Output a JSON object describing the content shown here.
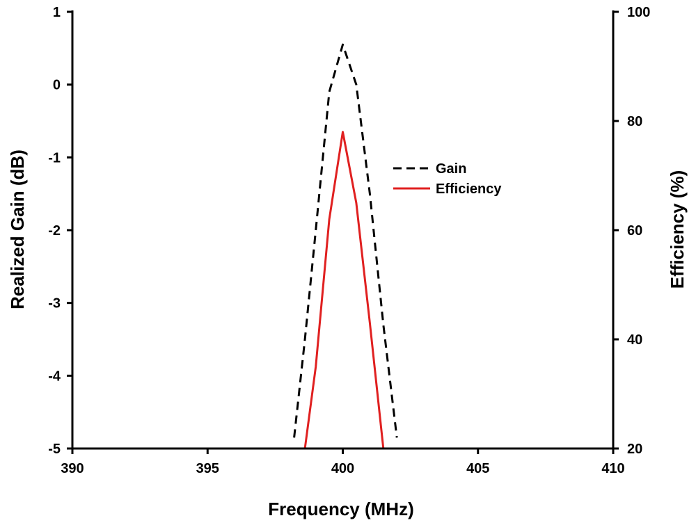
{
  "chart_data": {
    "type": "line",
    "title": "",
    "xlabel": "Frequency (MHz)",
    "ylabel_left": "Realized Gain (dB)",
    "ylabel_right": "Efficiency (%)",
    "xlim": [
      390,
      410
    ],
    "ylim_left": [
      -5,
      1
    ],
    "ylim_right": [
      20,
      100
    ],
    "x_ticks": [
      390,
      395,
      400,
      405,
      410
    ],
    "x_tick_labels": [
      "390",
      "395",
      "400",
      "405",
      "410"
    ],
    "y_left_ticks": [
      1,
      0,
      -1,
      -2,
      -3,
      -4,
      -5
    ],
    "y_left_tick_labels": [
      "1",
      "0",
      "-1",
      "-2",
      "-3",
      "-4",
      "-5"
    ],
    "y_right_ticks": [
      100,
      80,
      60,
      40,
      20
    ],
    "y_right_tick_labels": [
      "100",
      "80",
      "60",
      "40",
      "20"
    ],
    "grid": false,
    "legend_position": "center-right",
    "series": [
      {
        "name": "Gain",
        "axis": "left",
        "color": "#000000",
        "style": "dashed",
        "x": [
          398.2,
          398.6,
          399.0,
          399.5,
          400.0,
          400.5,
          401.0,
          401.5,
          402.0
        ],
        "y": [
          -4.85,
          -3.5,
          -2.0,
          -0.1,
          0.55,
          0.0,
          -1.5,
          -3.3,
          -4.85
        ]
      },
      {
        "name": "Efficiency",
        "axis": "right",
        "color": "#e02020",
        "style": "solid",
        "x": [
          398.6,
          399.0,
          399.5,
          400.0,
          400.5,
          401.0,
          401.5
        ],
        "y": [
          20,
          35,
          62,
          78,
          65,
          43,
          20
        ]
      }
    ]
  }
}
